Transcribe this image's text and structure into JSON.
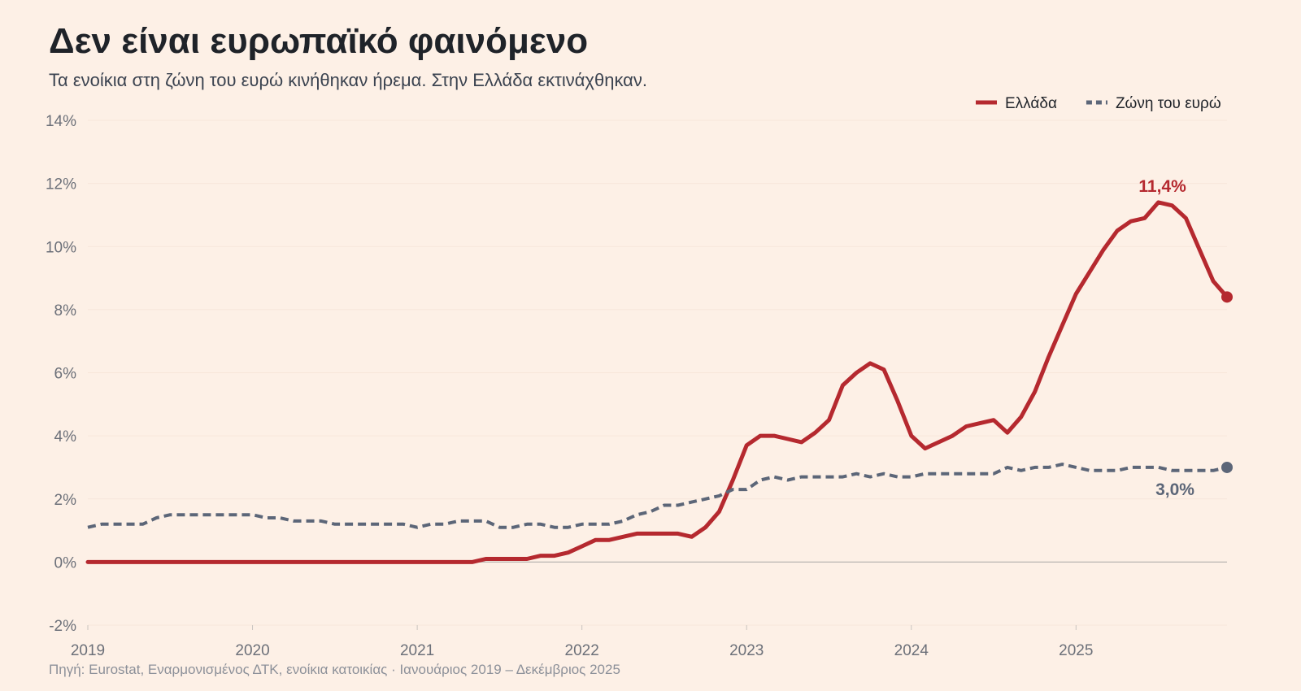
{
  "title": "Δεν είναι ευρωπαϊκό φαινόμενο",
  "subtitle": "Τα ενοίκια στη ζώνη του ευρώ κινήθηκαν ήρεμα. Στην Ελλάδα εκτινάχθηκαν.",
  "source": "Πηγή: Eurostat, Εναρμονισμένος ΔΤΚ, ενοίκια κατοικίας · Ιανουάριος 2019 – Δεκέμβριος 2025",
  "chart_data": {
    "type": "line",
    "x_start": "2019-01",
    "x_end": "2025-12",
    "x_ticks": [
      "2019",
      "2020",
      "2021",
      "2022",
      "2023",
      "2024",
      "2025"
    ],
    "y_ticks": [
      "14%",
      "12%",
      "10%",
      "8%",
      "6%",
      "4%",
      "2%",
      "0%",
      "-2%"
    ],
    "ylim": [
      -2,
      14
    ],
    "legend_position": "top-right",
    "series": [
      {
        "name": "Ελλάδα",
        "color": "#b5292f",
        "style": "solid",
        "points": [
          [
            "2019-01",
            0
          ],
          [
            "2021-05",
            0
          ],
          [
            "2021-06",
            0.1
          ],
          [
            "2021-09",
            0.1
          ],
          [
            "2021-10",
            0.2
          ],
          [
            "2021-11",
            0.2
          ],
          [
            "2021-12",
            0.3
          ],
          [
            "2022-01",
            0.5
          ],
          [
            "2022-02",
            0.7
          ],
          [
            "2022-03",
            0.7
          ],
          [
            "2022-04",
            0.8
          ],
          [
            "2022-05",
            0.9
          ],
          [
            "2022-06",
            0.9
          ],
          [
            "2022-07",
            0.9
          ],
          [
            "2022-08",
            0.9
          ],
          [
            "2022-09",
            0.8
          ],
          [
            "2022-10",
            1.1
          ],
          [
            "2022-11",
            1.6
          ],
          [
            "2022-12",
            2.6
          ],
          [
            "2023-01",
            3.7
          ],
          [
            "2023-02",
            4.0
          ],
          [
            "2023-03",
            4.0
          ],
          [
            "2023-04",
            3.9
          ],
          [
            "2023-05",
            3.8
          ],
          [
            "2023-06",
            4.1
          ],
          [
            "2023-07",
            4.5
          ],
          [
            "2023-08",
            5.6
          ],
          [
            "2023-09",
            6.0
          ],
          [
            "2023-10",
            6.3
          ],
          [
            "2023-11",
            6.1
          ],
          [
            "2023-12",
            5.1
          ],
          [
            "2024-01",
            4.0
          ],
          [
            "2024-02",
            3.6
          ],
          [
            "2024-03",
            3.8
          ],
          [
            "2024-04",
            4.0
          ],
          [
            "2024-05",
            4.3
          ],
          [
            "2024-06",
            4.4
          ],
          [
            "2024-07",
            4.5
          ],
          [
            "2024-08",
            4.1
          ],
          [
            "2024-09",
            4.6
          ],
          [
            "2024-10",
            5.4
          ],
          [
            "2024-11",
            6.5
          ],
          [
            "2024-12",
            7.5
          ],
          [
            "2025-01",
            8.5
          ],
          [
            "2025-02",
            9.2
          ],
          [
            "2025-03",
            9.9
          ],
          [
            "2025-04",
            10.5
          ],
          [
            "2025-05",
            10.8
          ],
          [
            "2025-06",
            10.9
          ],
          [
            "2025-07",
            11.4
          ],
          [
            "2025-08",
            11.3
          ],
          [
            "2025-09",
            10.9
          ],
          [
            "2025-10",
            9.9
          ],
          [
            "2025-11",
            8.9
          ],
          [
            "2025-12",
            8.4
          ]
        ],
        "peak_label": "11,4%",
        "peak_point": [
          "2025-07",
          11.4
        ],
        "end_label": null
      },
      {
        "name": "Ζώνη του ευρώ",
        "color": "#5c6678",
        "style": "dashed",
        "points": [
          [
            "2019-01",
            1.1
          ],
          [
            "2019-02",
            1.2
          ],
          [
            "2019-05",
            1.2
          ],
          [
            "2019-06",
            1.4
          ],
          [
            "2019-07",
            1.5
          ],
          [
            "2019-12",
            1.5
          ],
          [
            "2020-01",
            1.5
          ],
          [
            "2020-02",
            1.4
          ],
          [
            "2020-03",
            1.4
          ],
          [
            "2020-04",
            1.3
          ],
          [
            "2020-06",
            1.3
          ],
          [
            "2020-07",
            1.2
          ],
          [
            "2020-12",
            1.2
          ],
          [
            "2021-01",
            1.1
          ],
          [
            "2021-02",
            1.2
          ],
          [
            "2021-03",
            1.2
          ],
          [
            "2021-04",
            1.3
          ],
          [
            "2021-06",
            1.3
          ],
          [
            "2021-07",
            1.1
          ],
          [
            "2021-08",
            1.1
          ],
          [
            "2021-09",
            1.2
          ],
          [
            "2021-10",
            1.2
          ],
          [
            "2021-11",
            1.1
          ],
          [
            "2021-12",
            1.1
          ],
          [
            "2022-01",
            1.2
          ],
          [
            "2022-03",
            1.2
          ],
          [
            "2022-04",
            1.3
          ],
          [
            "2022-05",
            1.5
          ],
          [
            "2022-06",
            1.6
          ],
          [
            "2022-07",
            1.8
          ],
          [
            "2022-08",
            1.8
          ],
          [
            "2022-09",
            1.9
          ],
          [
            "2022-10",
            2.0
          ],
          [
            "2022-11",
            2.1
          ],
          [
            "2022-12",
            2.3
          ],
          [
            "2023-01",
            2.3
          ],
          [
            "2023-02",
            2.6
          ],
          [
            "2023-03",
            2.7
          ],
          [
            "2023-04",
            2.6
          ],
          [
            "2023-05",
            2.7
          ],
          [
            "2023-08",
            2.7
          ],
          [
            "2023-09",
            2.8
          ],
          [
            "2023-10",
            2.7
          ],
          [
            "2023-11",
            2.8
          ],
          [
            "2023-12",
            2.7
          ],
          [
            "2024-01",
            2.7
          ],
          [
            "2024-02",
            2.8
          ],
          [
            "2024-07",
            2.8
          ],
          [
            "2024-08",
            3.0
          ],
          [
            "2024-09",
            2.9
          ],
          [
            "2024-10",
            3.0
          ],
          [
            "2024-11",
            3.0
          ],
          [
            "2024-12",
            3.1
          ],
          [
            "2025-01",
            3.0
          ],
          [
            "2025-02",
            2.9
          ],
          [
            "2025-04",
            2.9
          ],
          [
            "2025-05",
            3.0
          ],
          [
            "2025-07",
            3.0
          ],
          [
            "2025-08",
            2.9
          ],
          [
            "2025-11",
            2.9
          ],
          [
            "2025-12",
            3.0
          ]
        ],
        "peak_label": null,
        "end_label": "3,0%"
      }
    ]
  }
}
